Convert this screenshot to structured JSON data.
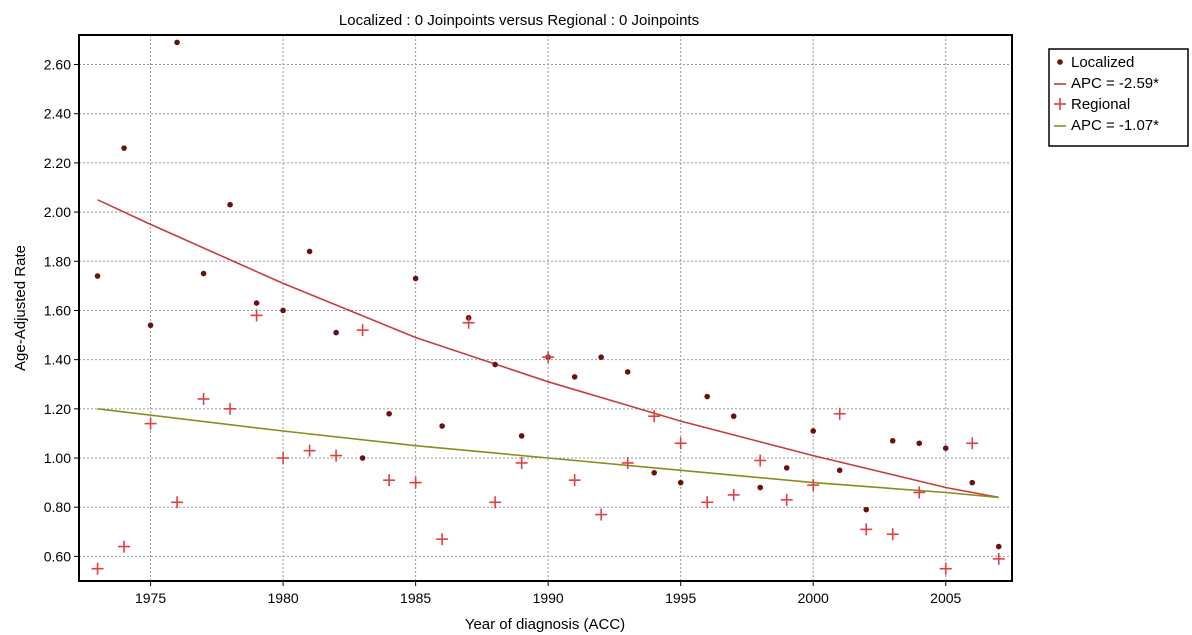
{
  "chart_data": {
    "type": "scatter",
    "title": "Localized : 0 Joinpoints  versus  Regional : 0 Joinpoints",
    "xlabel": "Year of diagnosis (ACC)",
    "ylabel": "Age-Adjusted Rate",
    "xlim": [
      1972.3,
      2007.5
    ],
    "ylim": [
      0.5,
      2.72
    ],
    "x_ticks": [
      1975,
      1980,
      1985,
      1990,
      1995,
      2000,
      2005
    ],
    "y_ticks": [
      "0.60",
      "0.80",
      "1.00",
      "1.20",
      "1.40",
      "1.60",
      "1.80",
      "2.00",
      "2.20",
      "2.40",
      "2.60"
    ],
    "grid": true,
    "legend_position": "right-top, outside plot",
    "series": [
      {
        "name": "Localized",
        "kind": "points",
        "marker": "dot",
        "color": "#6b0f0f",
        "x": [
          1973,
          1974,
          1975,
          1976,
          1977,
          1978,
          1979,
          1980,
          1981,
          1982,
          1983,
          1984,
          1985,
          1986,
          1987,
          1988,
          1989,
          1990,
          1991,
          1992,
          1993,
          1994,
          1995,
          1996,
          1997,
          1998,
          1999,
          2000,
          2001,
          2002,
          2003,
          2004,
          2005,
          2006,
          2007
        ],
        "y": [
          1.74,
          2.26,
          1.54,
          2.69,
          1.75,
          2.03,
          1.63,
          1.6,
          1.84,
          1.51,
          1.0,
          1.18,
          1.73,
          1.13,
          1.57,
          1.38,
          1.09,
          1.41,
          1.33,
          1.41,
          1.35,
          0.94,
          0.9,
          1.25,
          1.17,
          0.88,
          0.96,
          1.11,
          0.95,
          0.79,
          1.07,
          1.06,
          1.04,
          0.9,
          0.64
        ]
      },
      {
        "name": "APC = -2.59*",
        "kind": "line",
        "color": "#c83c3c",
        "x": [
          1973,
          1975,
          1980,
          1985,
          1990,
          1995,
          2000,
          2005,
          2007
        ],
        "y": [
          2.05,
          1.95,
          1.71,
          1.49,
          1.31,
          1.15,
          1.01,
          0.88,
          0.84
        ]
      },
      {
        "name": "Regional",
        "kind": "points",
        "marker": "plus",
        "color": "#e04040",
        "x": [
          1973,
          1974,
          1975,
          1976,
          1977,
          1978,
          1979,
          1980,
          1981,
          1982,
          1983,
          1984,
          1985,
          1986,
          1987,
          1988,
          1989,
          1990,
          1991,
          1992,
          1993,
          1994,
          1995,
          1996,
          1997,
          1998,
          1999,
          2000,
          2001,
          2002,
          2003,
          2004,
          2005,
          2006,
          2007
        ],
        "y": [
          0.55,
          0.64,
          1.14,
          0.82,
          1.24,
          1.2,
          1.58,
          1.0,
          1.03,
          1.01,
          1.52,
          0.91,
          0.9,
          0.67,
          1.55,
          0.82,
          0.98,
          1.41,
          0.91,
          0.77,
          0.98,
          1.17,
          1.06,
          0.82,
          0.85,
          0.99,
          0.83,
          0.89,
          1.18,
          0.71,
          0.69,
          0.86,
          0.55,
          1.06,
          0.59
        ]
      },
      {
        "name": "APC = -1.07*",
        "kind": "line",
        "color": "#8c8c1e",
        "x": [
          1973,
          1980,
          1985,
          1990,
          1995,
          2000,
          2005,
          2007
        ],
        "y": [
          1.2,
          1.11,
          1.05,
          1.0,
          0.95,
          0.9,
          0.86,
          0.84
        ]
      }
    ]
  }
}
